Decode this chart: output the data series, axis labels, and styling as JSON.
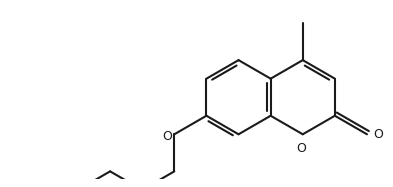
{
  "bg_color": "#ffffff",
  "line_color": "#1a1a1a",
  "line_width": 1.5,
  "figsize": [
    3.93,
    1.87
  ],
  "dpi": 100,
  "xlim": [
    -3.8,
    6.8
  ],
  "ylim": [
    -2.2,
    2.4
  ]
}
